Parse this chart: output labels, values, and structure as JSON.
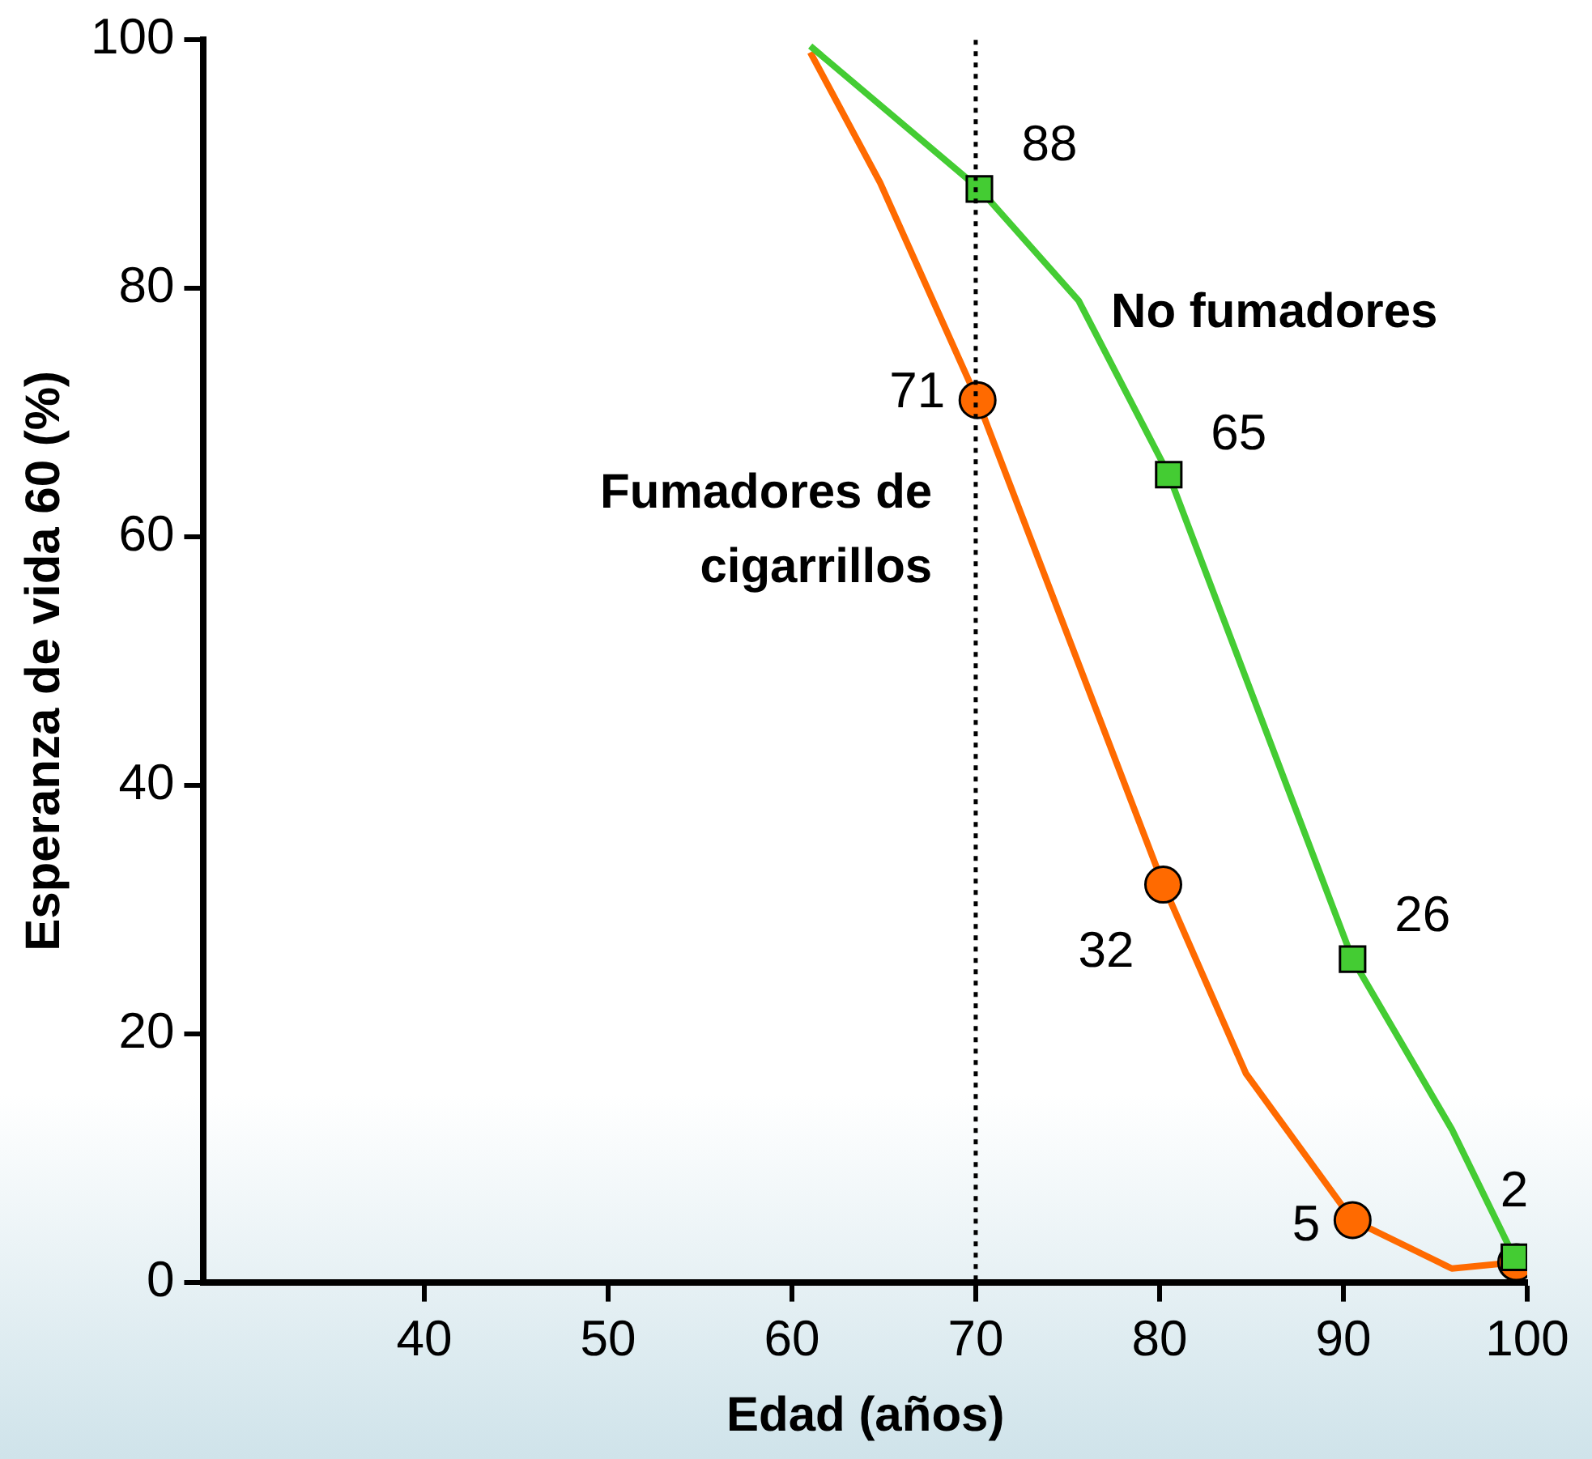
{
  "chart_data": {
    "type": "line",
    "xlabel": "Edad (años)",
    "ylabel": "Esperanza de vida 60 (%)",
    "xlim": [
      28,
      100
    ],
    "xticks": [
      40,
      50,
      60,
      70,
      80,
      90,
      100
    ],
    "ylim": [
      0,
      100
    ],
    "yticks": [
      0,
      20,
      40,
      60,
      80,
      100
    ],
    "grid": false,
    "legend": false,
    "ref_lines": [
      {
        "axis": "x",
        "value": 70,
        "color": "#000000",
        "line_style": "dotted"
      }
    ],
    "series": [
      {
        "name": "No fumadores",
        "color": "#44cc33",
        "x": [
          61,
          65.4,
          70.2,
          75.6,
          80.5,
          90.5,
          95.9,
          99.3
        ],
        "values": [
          99.5,
          94,
          88,
          79,
          65,
          26,
          12.3,
          2
        ]
      },
      {
        "name": "Fumadores de cigarrillos",
        "color": "#ff6a00",
        "x": [
          61,
          64.8,
          70.1,
          80.2,
          84.7,
          90.5,
          95.9,
          99.4
        ],
        "values": [
          99,
          88.5,
          71,
          32,
          16.8,
          5,
          1.1,
          1.6
        ]
      },
      {
        "type": "scatter",
        "marker": "circle",
        "color": "#ff6a00",
        "x": [
          70.1,
          80.2,
          90.5,
          99.4
        ],
        "values": [
          71,
          32,
          5,
          1.6
        ],
        "value_labels": [
          "71",
          "32",
          "5",
          null
        ]
      },
      {
        "type": "scatter",
        "marker": "square",
        "color": "#44cc33",
        "x": [
          70.2,
          80.5,
          90.5,
          99.3
        ],
        "values": [
          88,
          65,
          26,
          2
        ],
        "value_labels": [
          "88",
          "65",
          "26",
          "2"
        ]
      }
    ]
  }
}
